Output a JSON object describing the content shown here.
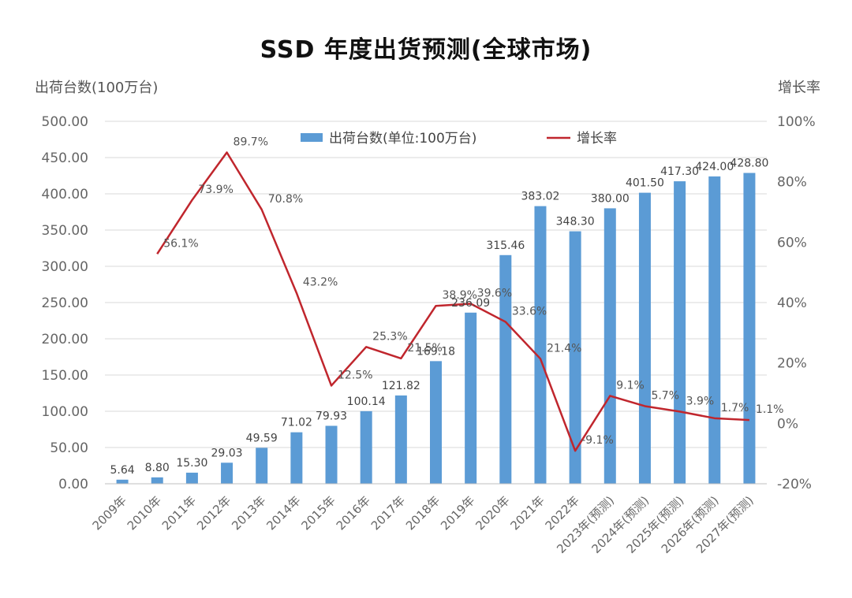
{
  "chart_data": {
    "type": "bar",
    "title": "SSD 年度出货预测(全球市场)",
    "ylabel": "出荷台数(100万台)",
    "ylabel_right": "增长率",
    "categories": [
      "2009年",
      "2010年",
      "2011年",
      "2012年",
      "2013年",
      "2014年",
      "2015年",
      "2016年",
      "2017年",
      "2018年",
      "2019年",
      "2020年",
      "2021年",
      "2022年",
      "2023年(预测)",
      "2024年(预测)",
      "2025年(预测)",
      "2026年(预测)",
      "2027年(预测)"
    ],
    "series": [
      {
        "name": "出荷台数(单位:100万台)",
        "kind": "bar",
        "color": "#5b9bd5",
        "values": [
          5.64,
          8.8,
          15.3,
          29.03,
          49.59,
          71.02,
          79.93,
          100.14,
          121.82,
          169.18,
          236.09,
          315.46,
          383.02,
          348.3,
          380.0,
          401.5,
          417.3,
          424.0,
          428.8
        ],
        "labels": [
          "5.64",
          "8.80",
          "15.30",
          "29.03",
          "49.59",
          "71.02",
          "79.93",
          "100.14",
          "121.82",
          "169.18",
          "236.09",
          "315.46",
          "383.02",
          "348.30",
          "380.00",
          "401.50",
          "417.30",
          "424.00",
          "428.80"
        ]
      },
      {
        "name": "增长率",
        "kind": "line",
        "color": "#c0262d",
        "axis": "right",
        "values": [
          null,
          56.1,
          73.9,
          89.7,
          70.8,
          43.2,
          12.5,
          25.3,
          21.5,
          38.9,
          39.6,
          33.6,
          21.4,
          -9.1,
          9.1,
          5.7,
          3.9,
          1.7,
          1.1
        ],
        "labels": [
          "",
          "56.1%",
          "73.9%",
          "89.7%",
          "70.8%",
          "43.2%",
          "12.5%",
          "25.3%",
          "21.5%",
          "38.9%",
          "39.6%",
          "33.6%",
          "21.4%",
          "-9.1%",
          "9.1%",
          "5.7%",
          "3.9%",
          "1.7%",
          "1.1%"
        ]
      }
    ],
    "y_left": {
      "ylim": [
        0,
        500
      ],
      "ticks": [
        0,
        50,
        100,
        150,
        200,
        250,
        300,
        350,
        400,
        450,
        500
      ],
      "tick_labels": [
        "0.00",
        "50.00",
        "100.00",
        "150.00",
        "200.00",
        "250.00",
        "300.00",
        "350.00",
        "400.00",
        "450.00",
        "500.00"
      ]
    },
    "y_right": {
      "ylim": [
        -20,
        100
      ],
      "ticks": [
        -20,
        0,
        20,
        40,
        60,
        80,
        100
      ],
      "tick_labels": [
        "-20%",
        "0%",
        "20%",
        "40%",
        "60%",
        "80%",
        "100%"
      ]
    },
    "grid": true,
    "legend": {
      "position": "top-center"
    }
  }
}
